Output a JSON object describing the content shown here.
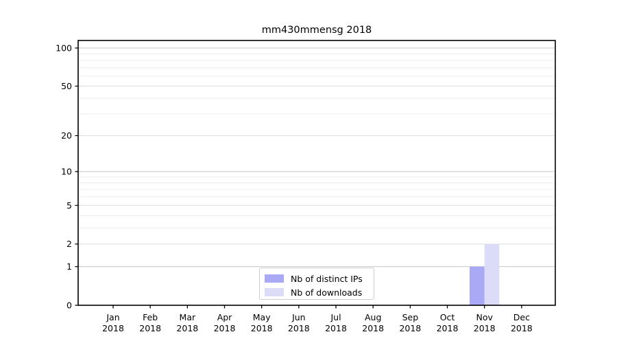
{
  "chart_data": {
    "type": "bar",
    "title": "mm430mmensg 2018",
    "categories": [
      "Jan",
      "Feb",
      "Mar",
      "Apr",
      "May",
      "Jun",
      "Jul",
      "Aug",
      "Sep",
      "Oct",
      "Nov",
      "Dec"
    ],
    "x_year_label": "2018",
    "series": [
      {
        "name": "Nb of distinct IPs",
        "color": "#a9a9f5",
        "values": [
          0,
          0,
          0,
          0,
          0,
          0,
          0,
          0,
          0,
          0,
          1,
          0
        ]
      },
      {
        "name": "Nb of downloads",
        "color": "#dcdcf9",
        "values": [
          0,
          0,
          0,
          0,
          0,
          0,
          0,
          0,
          0,
          0,
          2,
          0
        ]
      }
    ],
    "yscale": "log1p",
    "ylim": [
      0,
      115
    ],
    "yticks": [
      0,
      1,
      2,
      5,
      10,
      20,
      50,
      100
    ],
    "gridlines_major": [
      1,
      10,
      100
    ],
    "gridlines_mid": [
      2,
      5,
      20,
      50
    ],
    "gridlines_minor": [
      3,
      4,
      6,
      7,
      8,
      9,
      30,
      40,
      60,
      70,
      80,
      90
    ],
    "grid": true,
    "legend_position": "lower center",
    "colors": {
      "axis": "#000000",
      "tick_label": "#000000",
      "grid_major": "#c6c6c6",
      "grid_mid": "#dddddd",
      "grid_minor": "#ececec",
      "background": "#ffffff"
    }
  }
}
